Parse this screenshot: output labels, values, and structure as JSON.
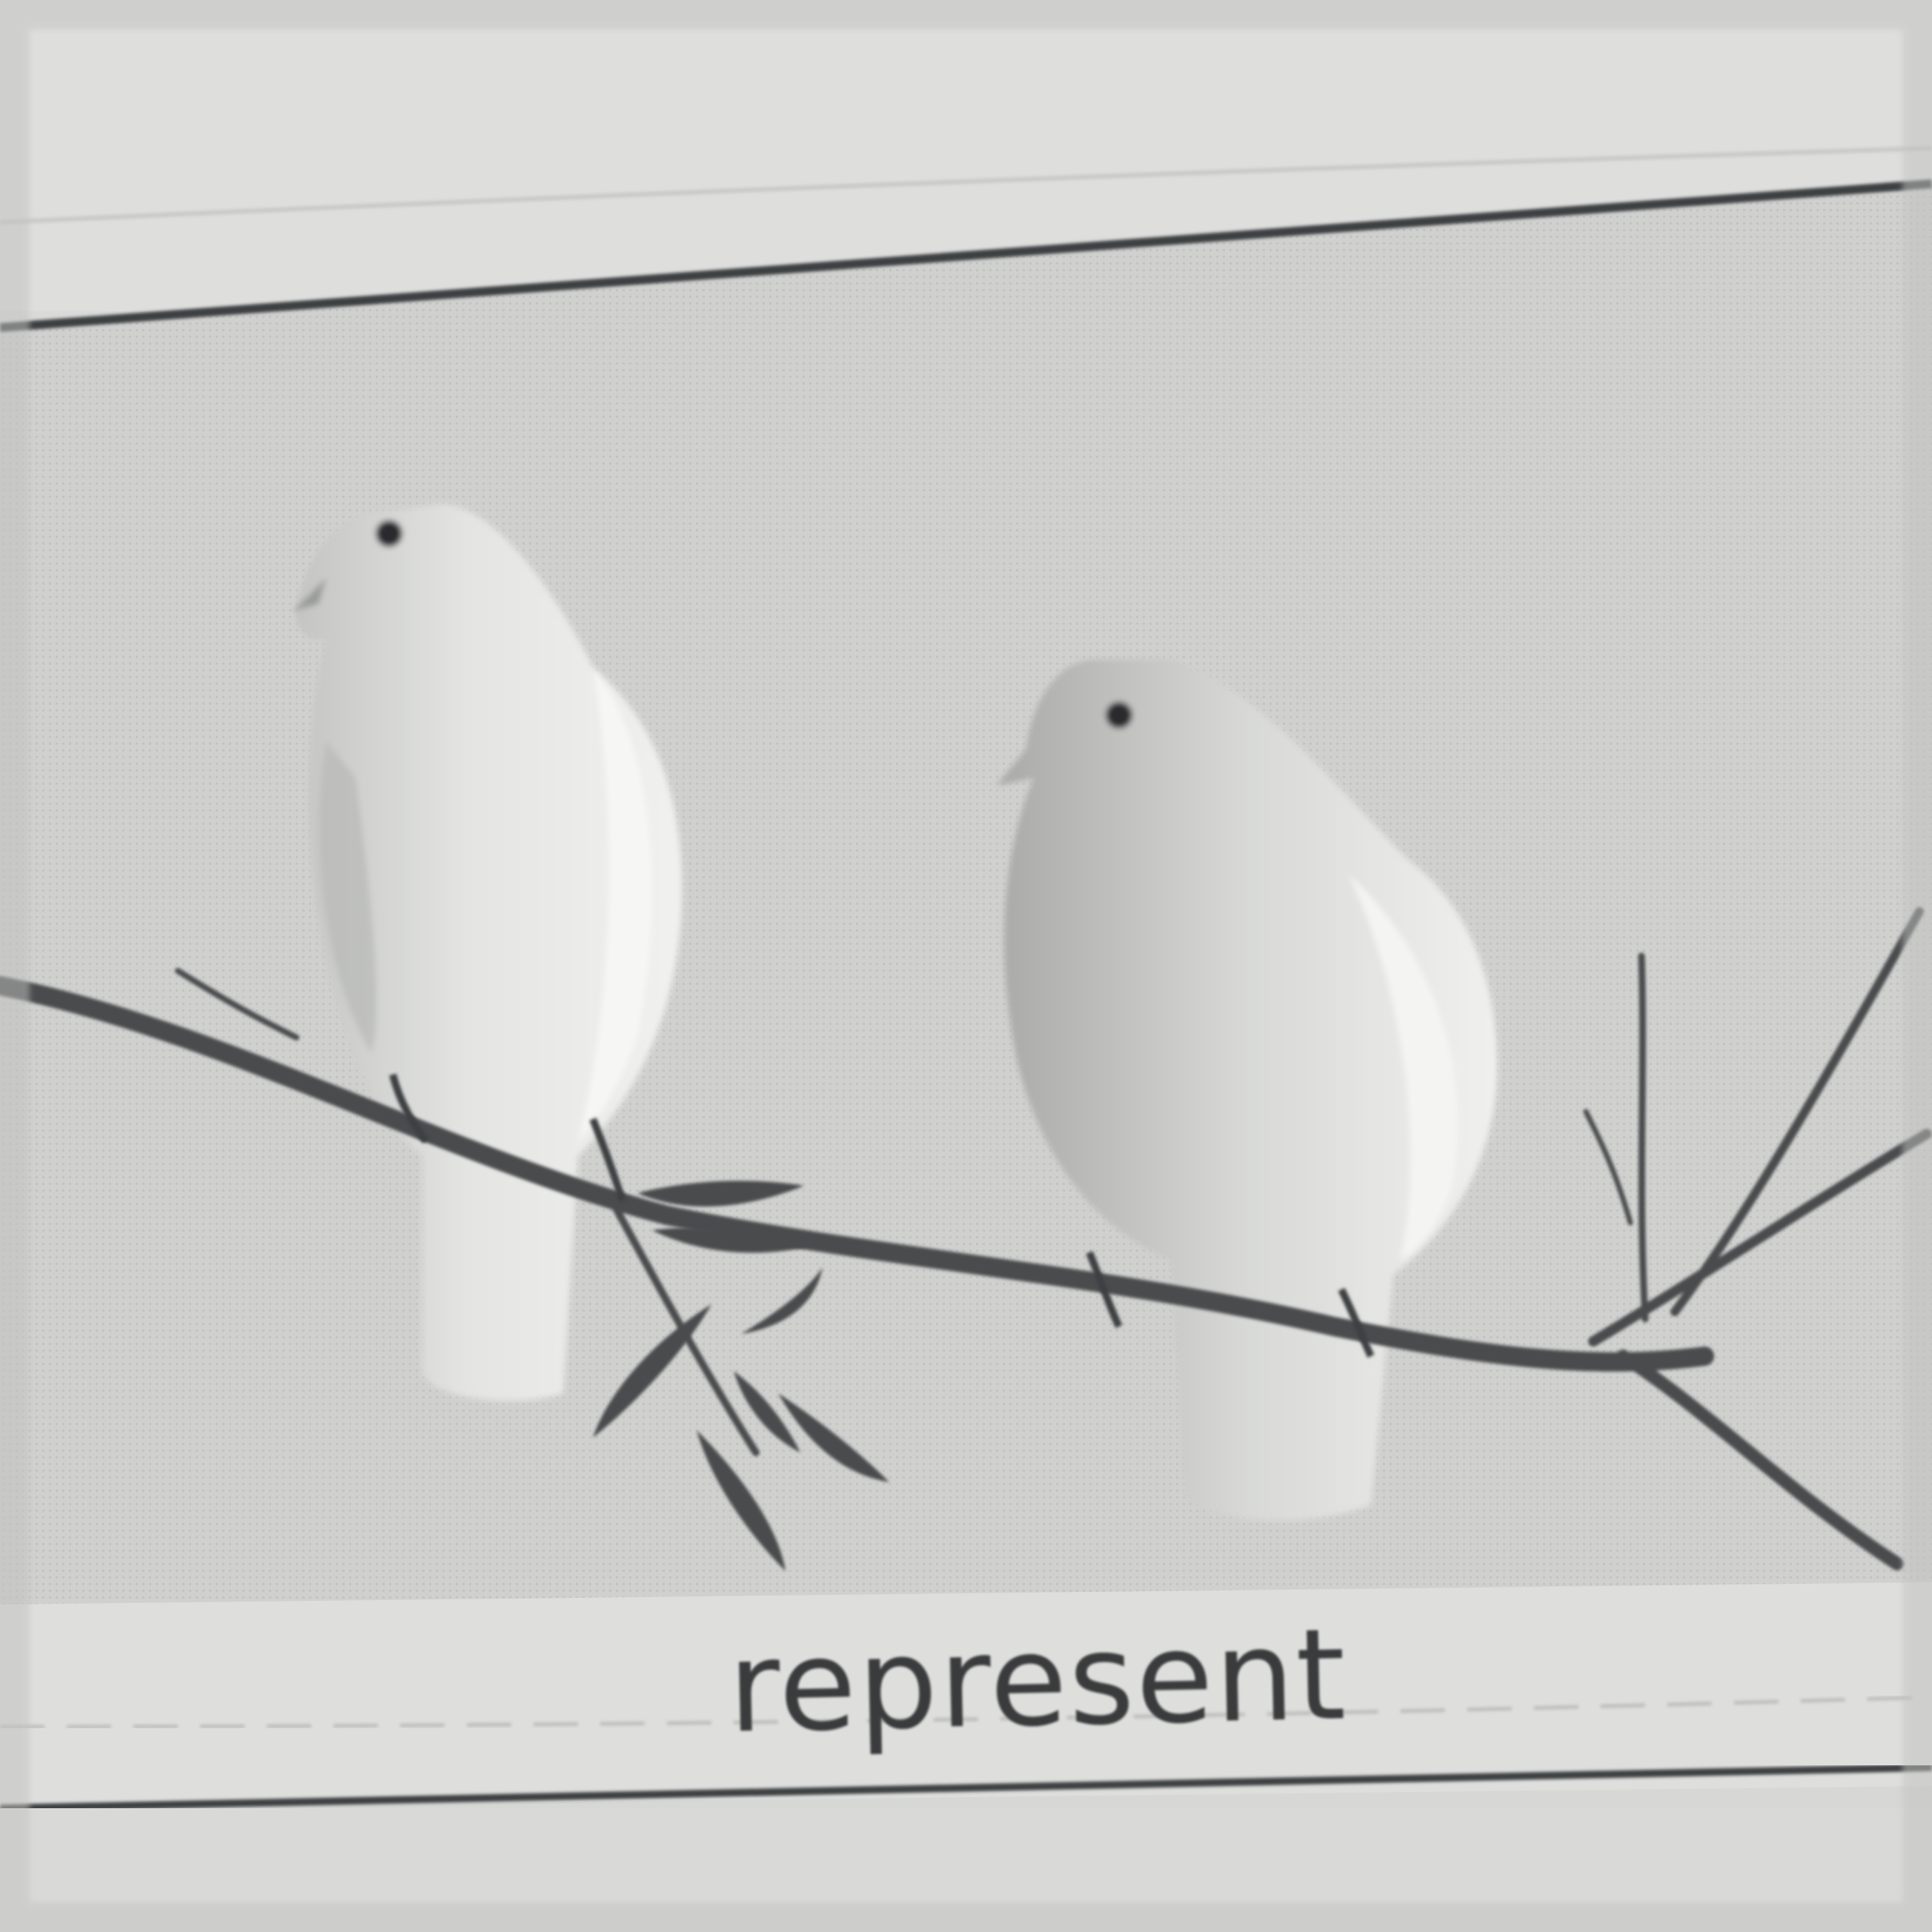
{
  "caption": "represent",
  "colors": {
    "paper": "#dcdddb",
    "panel": "#cdcecc",
    "rule": "#3c3f42",
    "branch": "#4a4c4e",
    "dove": "#eeeeec",
    "dove_shadow": "#b9bab8",
    "caption_text": "#3a3b3c"
  }
}
